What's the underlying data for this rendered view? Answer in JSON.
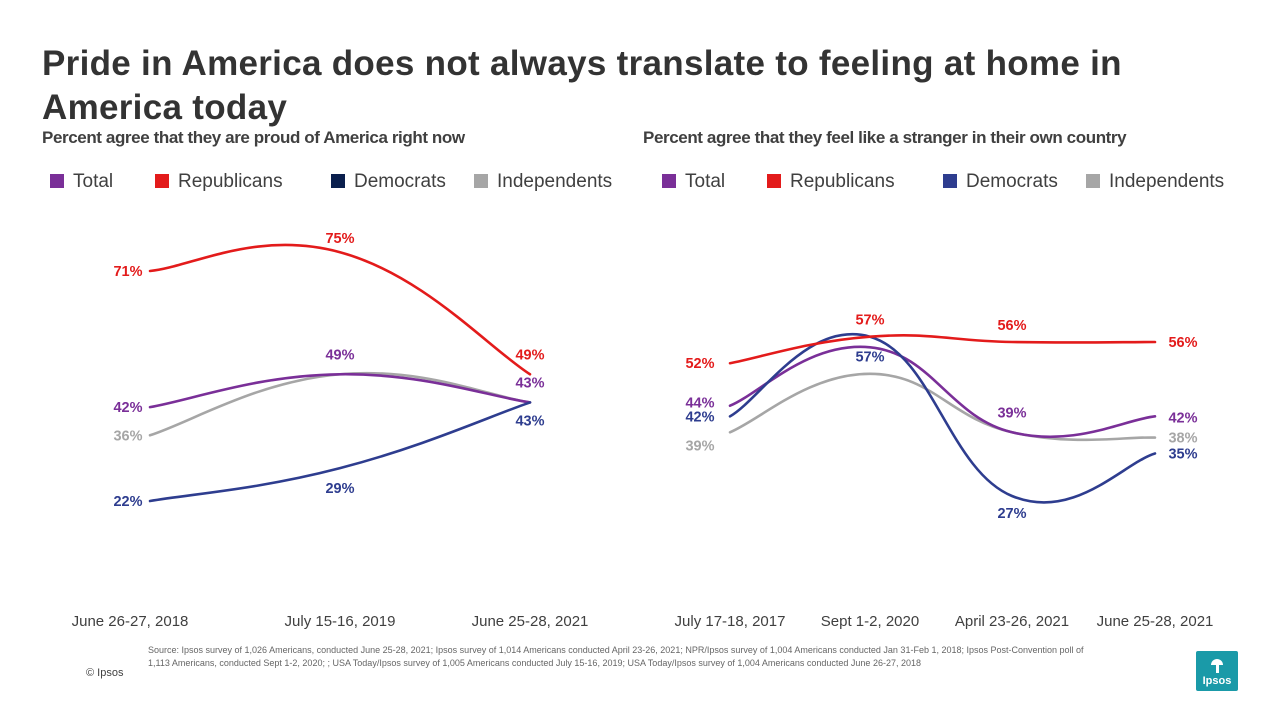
{
  "title": "Pride in America does not always translate to feeling at home in America today",
  "colors": {
    "Total": "#7a2f98",
    "Republicans": "#e31b1b",
    "Democrats": "#2e3d8f",
    "Democrats_swatch_left": "#0a1f4d",
    "Independents": "#a6a6a6"
  },
  "chart_data": [
    {
      "type": "line",
      "title": "Percent agree that they are proud of America right now",
      "categories": [
        "June 26-27, 2018",
        "July 15-16, 2019",
        "June 25-28, 2021"
      ],
      "legend": [
        "Total",
        "Republicans",
        "Democrats",
        "Independents"
      ],
      "ylim": [
        0,
        100
      ],
      "grid": false,
      "series": [
        {
          "name": "Total",
          "values": [
            42,
            49,
            43
          ],
          "labels": [
            "42%",
            "49%",
            "43%"
          ]
        },
        {
          "name": "Republicans",
          "values": [
            71,
            75,
            49
          ],
          "labels": [
            "71%",
            "75%",
            "49%"
          ]
        },
        {
          "name": "Democrats",
          "values": [
            22,
            29,
            43
          ],
          "labels": [
            "22%",
            "29%",
            "43%"
          ]
        },
        {
          "name": "Independents",
          "values": [
            36,
            49,
            43
          ],
          "labels": [
            "36%",
            "",
            ""
          ]
        }
      ]
    },
    {
      "type": "line",
      "title": "Percent agree that they feel like a stranger in their own country",
      "categories": [
        "July 17-18, 2017",
        "Sept 1-2, 2020",
        "April 23-26, 2021",
        "June 25-28, 2021"
      ],
      "legend": [
        "Total",
        "Republicans",
        "Democrats",
        "Independents"
      ],
      "ylim": [
        0,
        100
      ],
      "grid": false,
      "series": [
        {
          "name": "Total",
          "values": [
            44,
            55,
            39,
            42
          ],
          "labels": [
            "44%",
            "",
            "39%",
            "42%"
          ]
        },
        {
          "name": "Republicans",
          "values": [
            52,
            57,
            56,
            56
          ],
          "labels": [
            "52%",
            "57%",
            "56%",
            "56%"
          ]
        },
        {
          "name": "Democrats",
          "values": [
            42,
            57,
            27,
            35
          ],
          "labels": [
            "42%",
            "57%",
            "27%",
            "35%"
          ]
        },
        {
          "name": "Independents",
          "values": [
            39,
            50,
            39,
            38
          ],
          "labels": [
            "39%",
            "",
            "",
            "38%"
          ]
        }
      ]
    }
  ],
  "source": "Source: Ipsos survey of 1,026 Americans, conducted June 25-28, 2021; Ipsos survey of 1,014 Americans conducted April 23-26, 2021; NPR/Ipsos  survey of 1,004 Americans conducted Jan 31-Feb 1, 2018; Ipsos Post-Convention poll of 1,113 Americans, conducted Sept 1-2, 2020; ; USA Today/Ipsos survey of 1,005 Americans conducted July 15-16, 2019; USA Today/Ipsos survey of 1,004 Americans conducted June 26-27, 2018",
  "copyright": "© Ipsos",
  "logo_text": "Ipsos"
}
